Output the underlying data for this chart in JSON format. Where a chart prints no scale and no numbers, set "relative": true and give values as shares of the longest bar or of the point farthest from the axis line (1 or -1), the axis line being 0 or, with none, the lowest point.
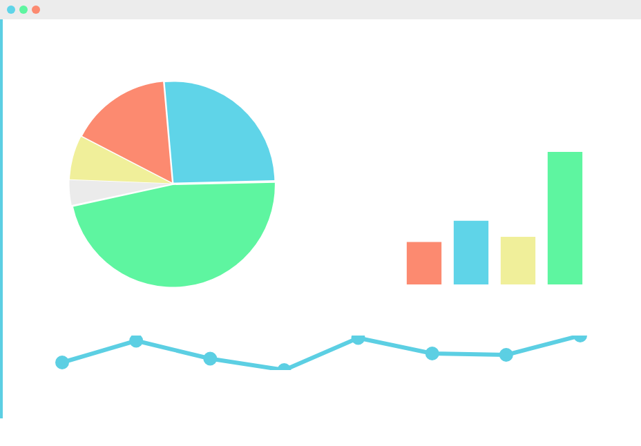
{
  "chart_data": [
    {
      "type": "pie",
      "categories": [
        null,
        null,
        null,
        null,
        null
      ],
      "values": [
        26,
        47,
        4,
        7,
        16
      ],
      "colors": [
        "#5fd4e8",
        "#5ef5a0",
        "#ebebeb",
        "#f0ef9a",
        "#fc8a70"
      ],
      "legend": false
    },
    {
      "type": "bar",
      "relative": true,
      "categories": [
        null,
        null,
        null,
        null
      ],
      "values": [
        0.32,
        0.48,
        0.36,
        1
      ],
      "colors": [
        "#fc8a70",
        "#5fd4e8",
        "#f0ef9a",
        "#5ef5a0"
      ],
      "legend": false
    },
    {
      "type": "line",
      "relative": true,
      "categories": [
        null,
        null,
        null,
        null,
        null,
        null,
        null,
        null
      ],
      "values": [
        0.22,
        0.85,
        0.33,
        0,
        0.93,
        0.48,
        0.44,
        1
      ],
      "color": "#5ccfe3",
      "marker": "circle",
      "legend": false
    }
  ]
}
